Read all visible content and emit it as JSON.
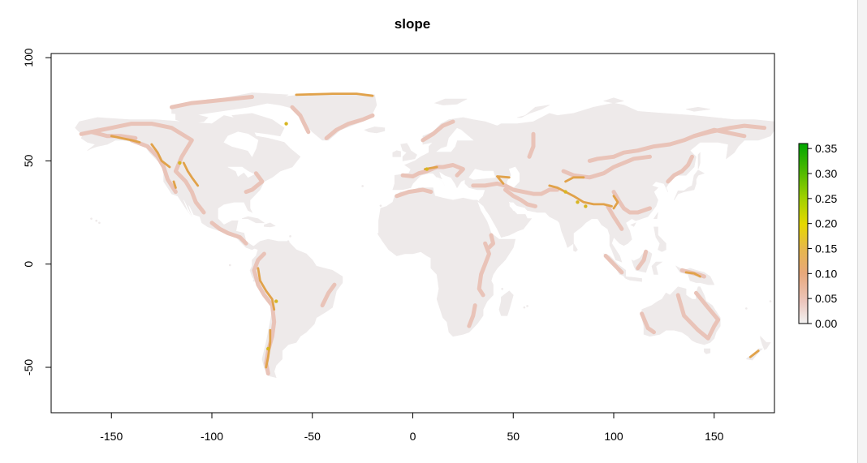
{
  "chart_data": {
    "type": "heatmap",
    "title": "slope",
    "xlabel": "",
    "ylabel": "",
    "xlim": [
      -180,
      180
    ],
    "ylim": [
      -72,
      102
    ],
    "x_ticks": [
      -150,
      -100,
      -50,
      0,
      50,
      100,
      150
    ],
    "y_ticks": [
      -50,
      0,
      50,
      100
    ],
    "x_tick_labels": [
      "-150",
      "-100",
      "-50",
      "0",
      "50",
      "100",
      "150"
    ],
    "y_tick_labels": [
      "-50",
      "0",
      "50",
      "100"
    ],
    "legend": {
      "placement": "right",
      "ticks": [
        0.0,
        0.05,
        0.1,
        0.15,
        0.2,
        0.25,
        0.3,
        0.35
      ],
      "tick_labels": [
        "0.00",
        "0.05",
        "0.10",
        "0.15",
        "0.20",
        "0.25",
        "0.30",
        "0.35"
      ],
      "range": [
        0,
        0.36
      ],
      "colors": [
        "#f2f2f2",
        "#ecc6bd",
        "#e8a87a",
        "#e6b84a",
        "#e6d800",
        "#9fd000",
        "#4cb800",
        "#00a600"
      ]
    },
    "colors": {
      "land_base": "#eeeaea",
      "low_slope": "#e9c3b8",
      "high_slope": "#e1a24a",
      "peak_slope": "#d8b622"
    }
  }
}
